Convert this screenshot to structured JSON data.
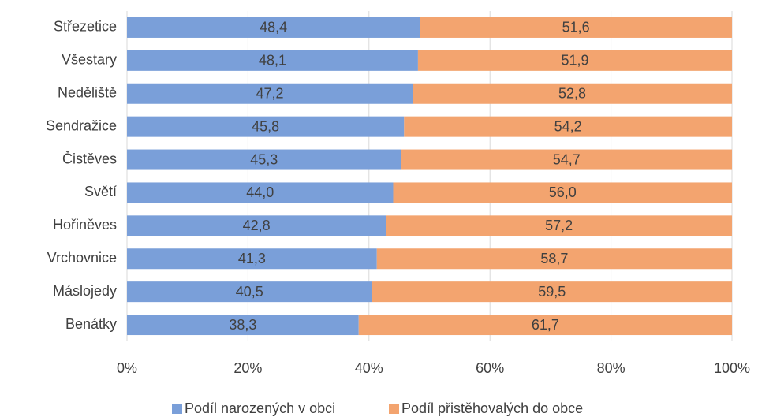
{
  "chart_data": {
    "type": "stacked_bar_horizontal",
    "categories": [
      "Střezetice",
      "Všestary",
      "Neděliště",
      "Sendražice",
      "Čistěves",
      "Světí",
      "Hořiněves",
      "Vrchovnice",
      "Máslojedy",
      "Benátky"
    ],
    "series": [
      {
        "name": "Podíl narozených v obci",
        "color": "#7a9fd9",
        "values": [
          48.4,
          48.1,
          47.2,
          45.8,
          45.3,
          44.0,
          42.8,
          41.3,
          40.5,
          38.3
        ],
        "value_labels": [
          "48,4",
          "48,1",
          "47,2",
          "45,8",
          "45,3",
          "44,0",
          "42,8",
          "41,3",
          "40,5",
          "38,3"
        ]
      },
      {
        "name": "Podíl přistěhovalých do obce",
        "color": "#f3a46f",
        "values": [
          51.6,
          51.9,
          52.8,
          54.2,
          54.7,
          56.0,
          57.2,
          58.7,
          59.5,
          61.7
        ],
        "value_labels": [
          "51,6",
          "51,9",
          "52,8",
          "54,2",
          "54,7",
          "56,0",
          "57,2",
          "58,7",
          "59,5",
          "61,7"
        ]
      }
    ],
    "xlim": [
      0,
      100
    ],
    "xticks": [
      {
        "value": 0,
        "label": "0%"
      },
      {
        "value": 20,
        "label": "20%"
      },
      {
        "value": 40,
        "label": "40%"
      },
      {
        "value": 60,
        "label": "60%"
      },
      {
        "value": 80,
        "label": "80%"
      },
      {
        "value": 100,
        "label": "100%"
      }
    ],
    "grid": true,
    "legend": "bottom"
  }
}
